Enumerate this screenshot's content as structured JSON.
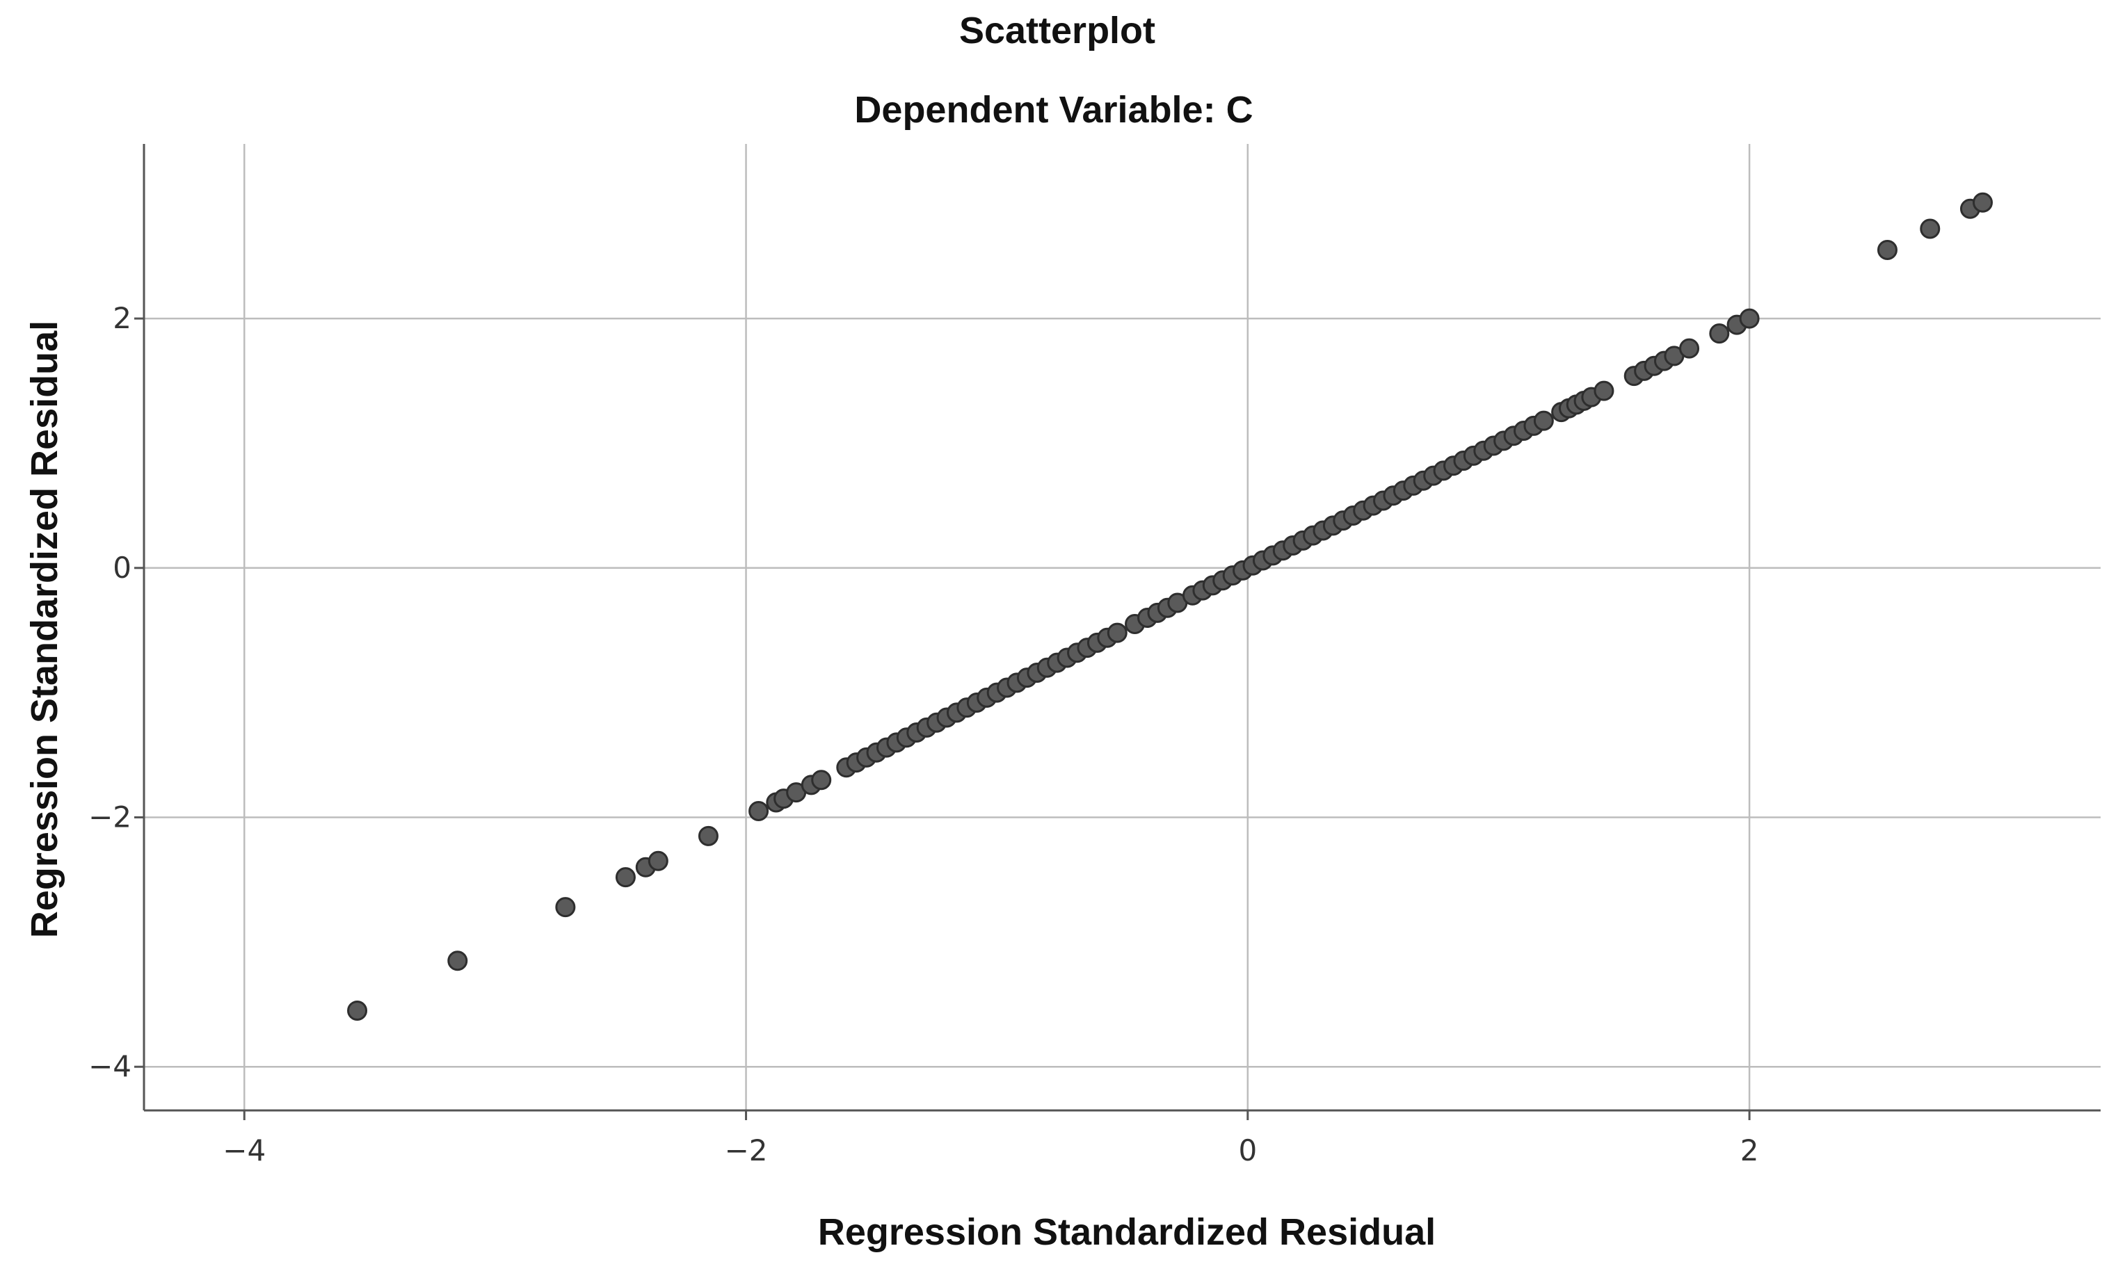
{
  "chart_data": {
    "type": "scatter",
    "title": "Scatterplot",
    "subtitle": "Dependent Variable: C",
    "xlabel": "Regression Standardized Residual",
    "ylabel": "Regression Standardized Residual",
    "xlim": [
      -4.4,
      3.4
    ],
    "ylim": [
      -4.35,
      3.4
    ],
    "x_ticks": [
      -4,
      -2,
      0,
      2
    ],
    "y_ticks": [
      -4,
      -2,
      0,
      2
    ],
    "x_tick_labels": [
      "−4",
      "−2",
      "0",
      "2"
    ],
    "y_tick_labels": [
      "−4",
      "−2",
      "0",
      "2"
    ],
    "grid": true,
    "legend": "none",
    "point_color": "#5a5a5a",
    "outline_color": "#2e2e2e",
    "points": [
      [
        -3.55,
        -3.55
      ],
      [
        -3.15,
        -3.15
      ],
      [
        -2.72,
        -2.72
      ],
      [
        -2.48,
        -2.48
      ],
      [
        -2.4,
        -2.4
      ],
      [
        -2.35,
        -2.35
      ],
      [
        -2.15,
        -2.15
      ],
      [
        -1.95,
        -1.95
      ],
      [
        -1.88,
        -1.88
      ],
      [
        -1.85,
        -1.85
      ],
      [
        -1.8,
        -1.8
      ],
      [
        -1.74,
        -1.74
      ],
      [
        -1.7,
        -1.7
      ],
      [
        -1.6,
        -1.6
      ],
      [
        -1.56,
        -1.56
      ],
      [
        -1.52,
        -1.52
      ],
      [
        -1.48,
        -1.48
      ],
      [
        -1.44,
        -1.44
      ],
      [
        -1.4,
        -1.4
      ],
      [
        -1.36,
        -1.36
      ],
      [
        -1.32,
        -1.32
      ],
      [
        -1.28,
        -1.28
      ],
      [
        -1.24,
        -1.24
      ],
      [
        -1.2,
        -1.2
      ],
      [
        -1.16,
        -1.16
      ],
      [
        -1.12,
        -1.12
      ],
      [
        -1.08,
        -1.08
      ],
      [
        -1.04,
        -1.04
      ],
      [
        -1.0,
        -1.0
      ],
      [
        -0.96,
        -0.96
      ],
      [
        -0.92,
        -0.92
      ],
      [
        -0.88,
        -0.88
      ],
      [
        -0.84,
        -0.84
      ],
      [
        -0.8,
        -0.8
      ],
      [
        -0.76,
        -0.76
      ],
      [
        -0.72,
        -0.72
      ],
      [
        -0.68,
        -0.68
      ],
      [
        -0.64,
        -0.64
      ],
      [
        -0.6,
        -0.6
      ],
      [
        -0.56,
        -0.56
      ],
      [
        -0.52,
        -0.52
      ],
      [
        -0.45,
        -0.45
      ],
      [
        -0.4,
        -0.4
      ],
      [
        -0.36,
        -0.36
      ],
      [
        -0.32,
        -0.32
      ],
      [
        -0.28,
        -0.28
      ],
      [
        -0.22,
        -0.22
      ],
      [
        -0.18,
        -0.18
      ],
      [
        -0.14,
        -0.14
      ],
      [
        -0.1,
        -0.1
      ],
      [
        -0.06,
        -0.06
      ],
      [
        -0.02,
        -0.02
      ],
      [
        0.02,
        0.02
      ],
      [
        0.06,
        0.06
      ],
      [
        0.1,
        0.1
      ],
      [
        0.14,
        0.14
      ],
      [
        0.18,
        0.18
      ],
      [
        0.22,
        0.22
      ],
      [
        0.26,
        0.26
      ],
      [
        0.3,
        0.3
      ],
      [
        0.34,
        0.34
      ],
      [
        0.38,
        0.38
      ],
      [
        0.42,
        0.42
      ],
      [
        0.46,
        0.46
      ],
      [
        0.5,
        0.5
      ],
      [
        0.54,
        0.54
      ],
      [
        0.58,
        0.58
      ],
      [
        0.62,
        0.62
      ],
      [
        0.66,
        0.66
      ],
      [
        0.7,
        0.7
      ],
      [
        0.74,
        0.74
      ],
      [
        0.78,
        0.78
      ],
      [
        0.82,
        0.82
      ],
      [
        0.86,
        0.86
      ],
      [
        0.9,
        0.9
      ],
      [
        0.94,
        0.94
      ],
      [
        0.98,
        0.98
      ],
      [
        1.02,
        1.02
      ],
      [
        1.06,
        1.06
      ],
      [
        1.1,
        1.1
      ],
      [
        1.14,
        1.14
      ],
      [
        1.18,
        1.18
      ],
      [
        1.25,
        1.25
      ],
      [
        1.28,
        1.28
      ],
      [
        1.31,
        1.31
      ],
      [
        1.34,
        1.34
      ],
      [
        1.37,
        1.37
      ],
      [
        1.42,
        1.42
      ],
      [
        1.54,
        1.54
      ],
      [
        1.58,
        1.58
      ],
      [
        1.62,
        1.62
      ],
      [
        1.66,
        1.66
      ],
      [
        1.7,
        1.7
      ],
      [
        1.76,
        1.76
      ],
      [
        1.88,
        1.88
      ],
      [
        1.95,
        1.95
      ],
      [
        2.0,
        2.0
      ],
      [
        2.55,
        2.55
      ],
      [
        2.72,
        2.72
      ],
      [
        2.88,
        2.88
      ],
      [
        2.93,
        2.93
      ]
    ]
  }
}
